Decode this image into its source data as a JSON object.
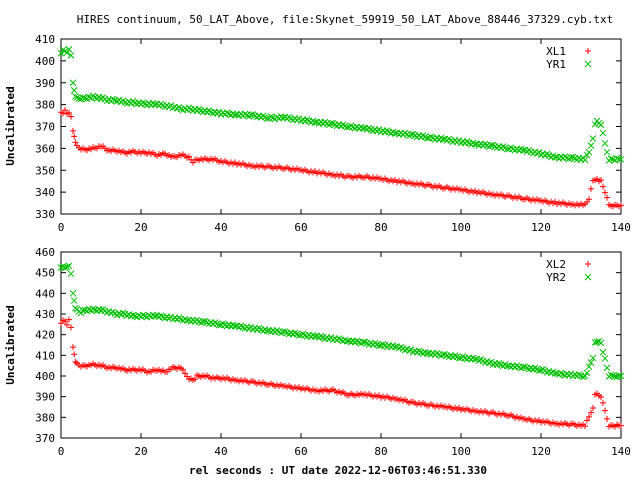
{
  "title": "HIRES continuum, 50_LAT_Above, file:Skynet_59919_50_LAT_Above_88446_37329.cyb.txt",
  "xlabel": "rel seconds : UT date 2022-12-06T03:46:51.330",
  "chart_data": [
    {
      "type": "scatter",
      "ylabel": "Uncalibrated",
      "xlim": [
        0,
        140
      ],
      "ylim": [
        330,
        410
      ],
      "xticks": [
        0,
        20,
        40,
        60,
        80,
        100,
        120,
        140
      ],
      "yticks": [
        330,
        340,
        350,
        360,
        370,
        380,
        390,
        400,
        410
      ],
      "legend_position": "top-right",
      "series": [
        {
          "name": "XL1",
          "marker": "plus",
          "color": "#ff0000",
          "points": [
            [
              0,
              377
            ],
            [
              0.5,
              376
            ],
            [
              1,
              377
            ],
            [
              1.5,
              376
            ],
            [
              2,
              376
            ],
            [
              2.5,
              375
            ],
            [
              3,
              368
            ],
            [
              3.3,
              365
            ],
            [
              3.6,
              363
            ],
            [
              4,
              361
            ],
            [
              5,
              360
            ],
            [
              6,
              359.5
            ],
            [
              8,
              360
            ],
            [
              10,
              361
            ],
            [
              12,
              359
            ],
            [
              14,
              359
            ],
            [
              16,
              358
            ],
            [
              18,
              358.5
            ],
            [
              20,
              358
            ],
            [
              22,
              358
            ],
            [
              24,
              357
            ],
            [
              26,
              357.5
            ],
            [
              28,
              356
            ],
            [
              30,
              357
            ],
            [
              32,
              356
            ],
            [
              33,
              354
            ],
            [
              34,
              355
            ],
            [
              36,
              355
            ],
            [
              38,
              355
            ],
            [
              40,
              354
            ],
            [
              44,
              353
            ],
            [
              48,
              352
            ],
            [
              52,
              351.5
            ],
            [
              56,
              351
            ],
            [
              60,
              350
            ],
            [
              64,
              349
            ],
            [
              68,
              348
            ],
            [
              72,
              347
            ],
            [
              76,
              347
            ],
            [
              80,
              346
            ],
            [
              84,
              345
            ],
            [
              88,
              344
            ],
            [
              92,
              343
            ],
            [
              96,
              342
            ],
            [
              100,
              341
            ],
            [
              104,
              340
            ],
            [
              108,
              339
            ],
            [
              112,
              338
            ],
            [
              116,
              337
            ],
            [
              120,
              336
            ],
            [
              124,
              335
            ],
            [
              128,
              334.5
            ],
            [
              131,
              334
            ],
            [
              132,
              337
            ],
            [
              133,
              345
            ],
            [
              133.5,
              346
            ],
            [
              134,
              346
            ],
            [
              135,
              345
            ],
            [
              136,
              340
            ],
            [
              137,
              334
            ],
            [
              138,
              334
            ],
            [
              139,
              334
            ],
            [
              140,
              334
            ]
          ]
        },
        {
          "name": "YR1",
          "marker": "cross",
          "color": "#00c000",
          "points": [
            [
              0,
              404
            ],
            [
              0.5,
              405
            ],
            [
              1,
              404
            ],
            [
              1.5,
              404
            ],
            [
              2,
              405
            ],
            [
              2.5,
              403
            ],
            [
              3,
              390
            ],
            [
              3.3,
              386
            ],
            [
              3.6,
              384
            ],
            [
              4,
              383
            ],
            [
              5,
              383
            ],
            [
              6,
              383
            ],
            [
              8,
              383.5
            ],
            [
              10,
              383
            ],
            [
              12,
              382
            ],
            [
              14,
              382
            ],
            [
              16,
              381
            ],
            [
              18,
              381
            ],
            [
              20,
              380.5
            ],
            [
              24,
              380
            ],
            [
              28,
              379
            ],
            [
              30,
              378
            ],
            [
              32,
              378
            ],
            [
              34,
              377.5
            ],
            [
              36,
              377
            ],
            [
              40,
              376
            ],
            [
              44,
              375.5
            ],
            [
              48,
              375
            ],
            [
              52,
              374
            ],
            [
              56,
              374
            ],
            [
              60,
              373
            ],
            [
              64,
              372
            ],
            [
              68,
              371
            ],
            [
              72,
              370
            ],
            [
              76,
              369
            ],
            [
              80,
              368
            ],
            [
              84,
              367
            ],
            [
              88,
              366
            ],
            [
              92,
              365
            ],
            [
              96,
              364
            ],
            [
              100,
              363
            ],
            [
              104,
              362
            ],
            [
              108,
              361
            ],
            [
              112,
              360
            ],
            [
              116,
              359
            ],
            [
              120,
              357.5
            ],
            [
              124,
              356
            ],
            [
              128,
              355.5
            ],
            [
              131,
              355
            ],
            [
              132,
              358
            ],
            [
              133,
              365
            ],
            [
              133.5,
              371
            ],
            [
              134,
              372
            ],
            [
              135,
              371
            ],
            [
              136,
              362
            ],
            [
              137,
              355
            ],
            [
              138,
              355
            ],
            [
              139,
              355
            ],
            [
              140,
              355
            ]
          ]
        }
      ]
    },
    {
      "type": "scatter",
      "ylabel": "Uncalibrated",
      "xlim": [
        0,
        140
      ],
      "ylim": [
        370,
        460
      ],
      "xticks": [
        0,
        20,
        40,
        60,
        80,
        100,
        120,
        140
      ],
      "yticks": [
        370,
        380,
        390,
        400,
        410,
        420,
        430,
        440,
        450,
        460
      ],
      "legend_position": "top-right",
      "series": [
        {
          "name": "XL2",
          "marker": "plus",
          "color": "#ff0000",
          "points": [
            [
              0,
              426
            ],
            [
              0.5,
              427
            ],
            [
              1,
              426
            ],
            [
              1.5,
              425
            ],
            [
              2,
              427
            ],
            [
              2.5,
              424
            ],
            [
              3,
              414
            ],
            [
              3.3,
              410
            ],
            [
              3.6,
              407
            ],
            [
              4,
              406
            ],
            [
              5,
              405
            ],
            [
              6,
              405
            ],
            [
              8,
              405.5
            ],
            [
              10,
              405
            ],
            [
              12,
              404
            ],
            [
              14,
              404
            ],
            [
              16,
              403
            ],
            [
              18,
              403
            ],
            [
              20,
              403
            ],
            [
              22,
              402
            ],
            [
              24,
              403
            ],
            [
              26,
              402
            ],
            [
              28,
              404
            ],
            [
              30,
              404
            ],
            [
              31,
              401
            ],
            [
              32,
              399
            ],
            [
              33,
              398
            ],
            [
              34,
              400
            ],
            [
              36,
              400
            ],
            [
              38,
              399
            ],
            [
              40,
              399
            ],
            [
              44,
              398
            ],
            [
              48,
              397
            ],
            [
              52,
              396
            ],
            [
              56,
              395
            ],
            [
              60,
              394
            ],
            [
              64,
              393
            ],
            [
              68,
              393
            ],
            [
              72,
              391
            ],
            [
              76,
              391
            ],
            [
              80,
              390
            ],
            [
              84,
              389
            ],
            [
              88,
              387
            ],
            [
              92,
              386
            ],
            [
              96,
              385
            ],
            [
              100,
              384
            ],
            [
              104,
              383
            ],
            [
              108,
              382
            ],
            [
              112,
              381
            ],
            [
              116,
              379
            ],
            [
              120,
              378
            ],
            [
              124,
              377
            ],
            [
              128,
              376.5
            ],
            [
              131,
              376
            ],
            [
              132,
              380
            ],
            [
              133,
              385
            ],
            [
              133.5,
              391
            ],
            [
              134,
              391
            ],
            [
              135,
              390
            ],
            [
              136,
              383
            ],
            [
              137,
              376
            ],
            [
              138,
              376
            ],
            [
              139,
              376
            ],
            [
              140,
              376
            ]
          ]
        },
        {
          "name": "YR2",
          "marker": "cross",
          "color": "#00c000",
          "points": [
            [
              0,
              453
            ],
            [
              0.5,
              453
            ],
            [
              1,
              452
            ],
            [
              1.5,
              453
            ],
            [
              2,
              453
            ],
            [
              2.5,
              450
            ],
            [
              3,
              440
            ],
            [
              3.3,
              436
            ],
            [
              3.6,
              433
            ],
            [
              4,
              432
            ],
            [
              5,
              431
            ],
            [
              6,
              432
            ],
            [
              8,
              432
            ],
            [
              10,
              432
            ],
            [
              12,
              431
            ],
            [
              14,
              430
            ],
            [
              16,
              430
            ],
            [
              18,
              429
            ],
            [
              20,
              429
            ],
            [
              24,
              429
            ],
            [
              28,
              428
            ],
            [
              32,
              427
            ],
            [
              36,
              426
            ],
            [
              40,
              425
            ],
            [
              44,
              424
            ],
            [
              48,
              423
            ],
            [
              52,
              422
            ],
            [
              56,
              421
            ],
            [
              60,
              420
            ],
            [
              64,
              419
            ],
            [
              68,
              418
            ],
            [
              72,
              417
            ],
            [
              76,
              416
            ],
            [
              80,
              415
            ],
            [
              84,
              414
            ],
            [
              88,
              412
            ],
            [
              92,
              411
            ],
            [
              96,
              410
            ],
            [
              100,
              409
            ],
            [
              104,
              408
            ],
            [
              108,
              406
            ],
            [
              112,
              405
            ],
            [
              116,
              404
            ],
            [
              120,
              403
            ],
            [
              124,
              401
            ],
            [
              128,
              400.5
            ],
            [
              131,
              400
            ],
            [
              132,
              404
            ],
            [
              133,
              409
            ],
            [
              133.5,
              416
            ],
            [
              134,
              417
            ],
            [
              135,
              416
            ],
            [
              136,
              408
            ],
            [
              137,
              400
            ],
            [
              138,
              400
            ],
            [
              139,
              400
            ],
            [
              140,
              400
            ]
          ]
        }
      ]
    }
  ]
}
